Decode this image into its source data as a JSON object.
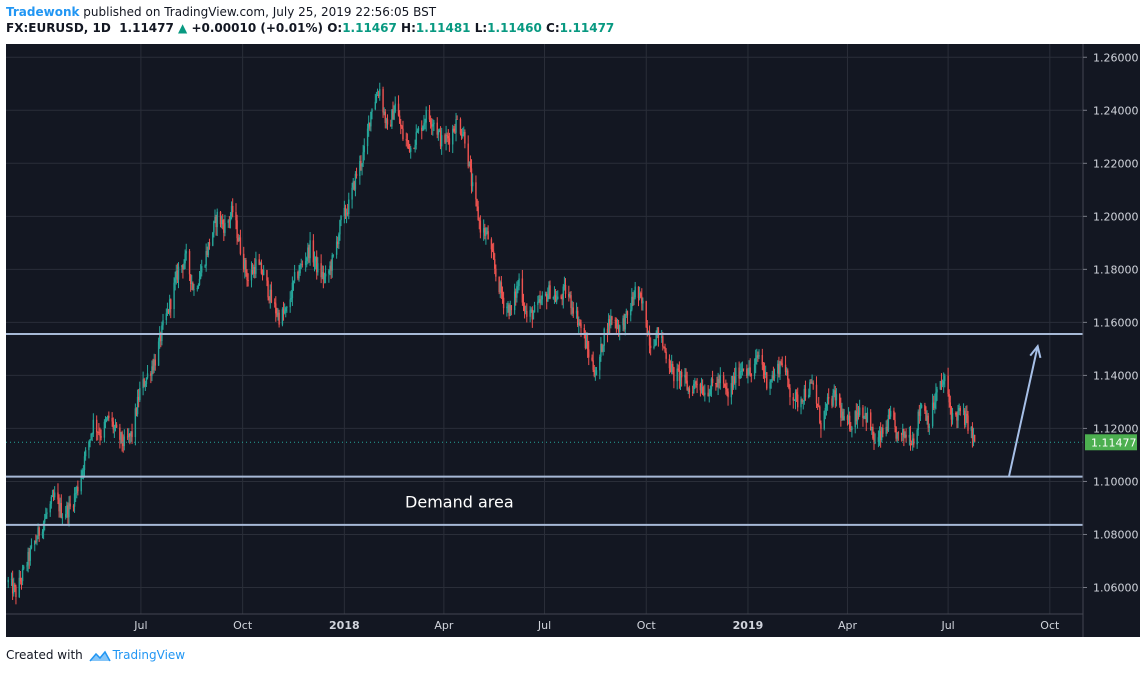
{
  "header": {
    "author": "Tradewonk",
    "published_text": "published on TradingView.com, July 25, 2019 22:56:05 BST",
    "symbol": "FX:EURUSD, 1D",
    "last": "1.11477",
    "change_arrow": "▲",
    "change": "+0.00010 (+0.01%)",
    "o_label": "O:",
    "o_value": "1.11467",
    "h_label": "H:",
    "h_value": "1.11481",
    "l_label": "L:",
    "l_value": "1.11460",
    "c_label": "C:",
    "c_value": "1.11477"
  },
  "footer": {
    "created_with": "Created with",
    "brand": "TradingView",
    "logo_icon": "tradingview-logo-icon"
  },
  "colors": {
    "background": "#131722",
    "grid": "#2a2e39",
    "up": "#26a69a",
    "down": "#ef5350",
    "level_line": "#a7b9d6",
    "price_tag": "#4caf50",
    "arrow": "#a7c0e8"
  },
  "chart_data": {
    "type": "candlestick",
    "title": "",
    "price_axis": {
      "min": 1.05,
      "max": 1.265,
      "ticks": [
        "1.26000",
        "1.24000",
        "1.22000",
        "1.20000",
        "1.18000",
        "1.16000",
        "1.14000",
        "1.12000",
        "1.10000",
        "1.08000",
        "1.06000"
      ]
    },
    "time_axis": {
      "start": "2017-03-01",
      "end": "2019-10-31",
      "ticks": [
        {
          "label": "Jul",
          "date": "2017-07-01",
          "bold": false
        },
        {
          "label": "Oct",
          "date": "2017-10-01",
          "bold": false
        },
        {
          "label": "2018",
          "date": "2018-01-01",
          "bold": true
        },
        {
          "label": "Apr",
          "date": "2018-04-01",
          "bold": false
        },
        {
          "label": "Jul",
          "date": "2018-07-01",
          "bold": false
        },
        {
          "label": "Oct",
          "date": "2018-10-01",
          "bold": false
        },
        {
          "label": "2019",
          "date": "2019-01-01",
          "bold": true
        },
        {
          "label": "Apr",
          "date": "2019-04-01",
          "bold": false
        },
        {
          "label": "Jul",
          "date": "2019-07-01",
          "bold": false
        },
        {
          "label": "Oct",
          "date": "2019-10-01",
          "bold": false
        }
      ]
    },
    "price_path": [
      [
        "2017-03-03",
        1.062
      ],
      [
        "2017-03-10",
        1.058
      ],
      [
        "2017-03-17",
        1.066
      ],
      [
        "2017-03-24",
        1.074
      ],
      [
        "2017-04-07",
        1.088
      ],
      [
        "2017-04-14",
        1.094
      ],
      [
        "2017-04-21",
        1.088
      ],
      [
        "2017-04-28",
        1.09
      ],
      [
        "2017-05-05",
        1.098
      ],
      [
        "2017-05-12",
        1.11
      ],
      [
        "2017-05-19",
        1.122
      ],
      [
        "2017-05-26",
        1.118
      ],
      [
        "2017-06-02",
        1.124
      ],
      [
        "2017-06-09",
        1.118
      ],
      [
        "2017-06-16",
        1.114
      ],
      [
        "2017-06-23",
        1.118
      ],
      [
        "2017-06-30",
        1.134
      ],
      [
        "2017-07-07",
        1.14
      ],
      [
        "2017-07-14",
        1.146
      ],
      [
        "2017-07-21",
        1.158
      ],
      [
        "2017-07-28",
        1.168
      ],
      [
        "2017-08-04",
        1.18
      ],
      [
        "2017-08-11",
        1.184
      ],
      [
        "2017-08-18",
        1.172
      ],
      [
        "2017-08-25",
        1.18
      ],
      [
        "2017-09-01",
        1.19
      ],
      [
        "2017-09-08",
        1.2
      ],
      [
        "2017-09-15",
        1.196
      ],
      [
        "2017-09-22",
        1.202
      ],
      [
        "2017-09-29",
        1.188
      ],
      [
        "2017-10-06",
        1.176
      ],
      [
        "2017-10-13",
        1.182
      ],
      [
        "2017-10-20",
        1.178
      ],
      [
        "2017-10-27",
        1.168
      ],
      [
        "2017-11-03",
        1.162
      ],
      [
        "2017-11-10",
        1.164
      ],
      [
        "2017-11-17",
        1.176
      ],
      [
        "2017-11-24",
        1.182
      ],
      [
        "2017-12-01",
        1.188
      ],
      [
        "2017-12-08",
        1.18
      ],
      [
        "2017-12-15",
        1.176
      ],
      [
        "2017-12-22",
        1.184
      ],
      [
        "2017-12-29",
        1.198
      ],
      [
        "2018-01-05",
        1.204
      ],
      [
        "2018-01-12",
        1.216
      ],
      [
        "2018-01-19",
        1.224
      ],
      [
        "2018-01-26",
        1.242
      ],
      [
        "2018-02-02",
        1.248
      ],
      [
        "2018-02-09",
        1.232
      ],
      [
        "2018-02-16",
        1.242
      ],
      [
        "2018-02-23",
        1.23
      ],
      [
        "2018-03-02",
        1.226
      ],
      [
        "2018-03-09",
        1.232
      ],
      [
        "2018-03-16",
        1.238
      ],
      [
        "2018-03-23",
        1.236
      ],
      [
        "2018-03-30",
        1.228
      ],
      [
        "2018-04-06",
        1.23
      ],
      [
        "2018-04-13",
        1.236
      ],
      [
        "2018-04-20",
        1.23
      ],
      [
        "2018-04-27",
        1.21
      ],
      [
        "2018-05-04",
        1.196
      ],
      [
        "2018-05-11",
        1.192
      ],
      [
        "2018-05-18",
        1.178
      ],
      [
        "2018-05-25",
        1.168
      ],
      [
        "2018-06-01",
        1.164
      ],
      [
        "2018-06-08",
        1.176
      ],
      [
        "2018-06-15",
        1.162
      ],
      [
        "2018-06-22",
        1.164
      ],
      [
        "2018-06-29",
        1.168
      ],
      [
        "2018-07-06",
        1.172
      ],
      [
        "2018-07-13",
        1.168
      ],
      [
        "2018-07-20",
        1.172
      ],
      [
        "2018-07-27",
        1.166
      ],
      [
        "2018-08-03",
        1.158
      ],
      [
        "2018-08-10",
        1.148
      ],
      [
        "2018-08-17",
        1.14
      ],
      [
        "2018-08-24",
        1.156
      ],
      [
        "2018-08-31",
        1.162
      ],
      [
        "2018-09-07",
        1.158
      ],
      [
        "2018-09-14",
        1.162
      ],
      [
        "2018-09-21",
        1.172
      ],
      [
        "2018-09-28",
        1.166
      ],
      [
        "2018-10-05",
        1.152
      ],
      [
        "2018-10-12",
        1.156
      ],
      [
        "2018-10-19",
        1.148
      ],
      [
        "2018-10-26",
        1.14
      ],
      [
        "2018-11-02",
        1.14
      ],
      [
        "2018-11-09",
        1.134
      ],
      [
        "2018-11-16",
        1.138
      ],
      [
        "2018-11-23",
        1.134
      ],
      [
        "2018-11-30",
        1.136
      ],
      [
        "2018-12-07",
        1.138
      ],
      [
        "2018-12-14",
        1.132
      ],
      [
        "2018-12-21",
        1.14
      ],
      [
        "2018-12-28",
        1.144
      ],
      [
        "2019-01-04",
        1.14
      ],
      [
        "2019-01-11",
        1.148
      ],
      [
        "2019-01-18",
        1.138
      ],
      [
        "2019-01-25",
        1.14
      ],
      [
        "2019-02-01",
        1.146
      ],
      [
        "2019-02-08",
        1.134
      ],
      [
        "2019-02-15",
        1.13
      ],
      [
        "2019-02-22",
        1.134
      ],
      [
        "2019-03-01",
        1.136
      ],
      [
        "2019-03-08",
        1.122
      ],
      [
        "2019-03-15",
        1.13
      ],
      [
        "2019-03-22",
        1.132
      ],
      [
        "2019-03-29",
        1.122
      ],
      [
        "2019-04-05",
        1.122
      ],
      [
        "2019-04-12",
        1.128
      ],
      [
        "2019-04-19",
        1.124
      ],
      [
        "2019-04-26",
        1.114
      ],
      [
        "2019-05-03",
        1.118
      ],
      [
        "2019-05-10",
        1.124
      ],
      [
        "2019-05-17",
        1.116
      ],
      [
        "2019-05-24",
        1.118
      ],
      [
        "2019-05-31",
        1.116
      ],
      [
        "2019-06-07",
        1.13
      ],
      [
        "2019-06-14",
        1.122
      ],
      [
        "2019-06-21",
        1.134
      ],
      [
        "2019-06-28",
        1.138
      ],
      [
        "2019-07-05",
        1.124
      ],
      [
        "2019-07-12",
        1.126
      ],
      [
        "2019-07-19",
        1.122
      ],
      [
        "2019-07-25",
        1.11477
      ]
    ],
    "last_price": 1.11477,
    "last_price_label": "1.11477",
    "horizontal_levels": [
      1.1556,
      1.1018,
      1.0836
    ],
    "annotations": [
      {
        "type": "text",
        "text": "Demand area",
        "date": "2018-04-15",
        "price": 1.0925
      },
      {
        "type": "arrow",
        "from_date": "2019-08-25",
        "from_price": 1.1018,
        "to_date": "2019-09-20",
        "to_price": 1.151
      }
    ]
  }
}
